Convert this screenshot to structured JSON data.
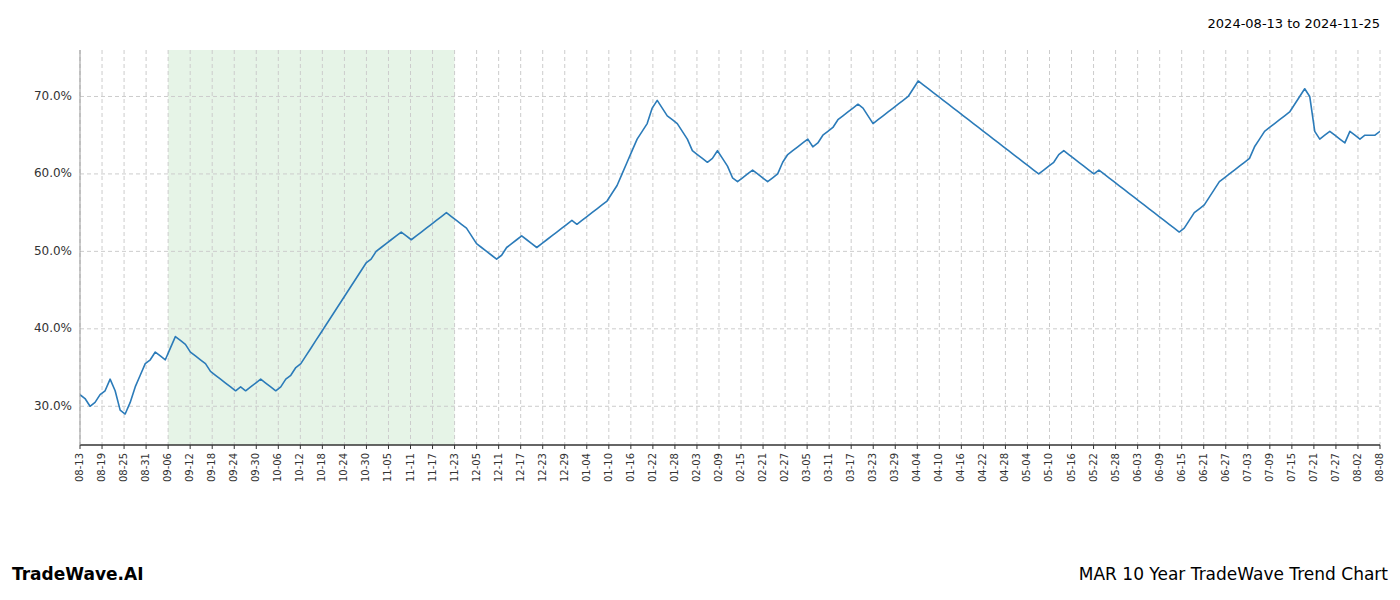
{
  "chart_data": {
    "type": "line",
    "title": "MAR 10 Year TradeWave Trend Chart",
    "subtitle": "2024-08-13 to 2024-11-25",
    "annotations": [
      "TradeWave.AI"
    ],
    "color": "#2B7BB9",
    "grid": true,
    "xlim": [
      0,
      259
    ],
    "xticks": [
      {
        "value": 0,
        "label": "08-13"
      },
      {
        "value": 4.389831,
        "label": "08-19"
      },
      {
        "value": 8.779661,
        "label": "08-25"
      },
      {
        "value": 13.169492,
        "label": "08-31"
      },
      {
        "value": 17.559322,
        "label": "09-06"
      },
      {
        "value": 21.949153,
        "label": "09-12"
      },
      {
        "value": 26.338983,
        "label": "09-18"
      },
      {
        "value": 30.728814,
        "label": "09-24"
      },
      {
        "value": 35.118644,
        "label": "09-30"
      },
      {
        "value": 39.508475,
        "label": "10-06"
      },
      {
        "value": 43.898305,
        "label": "10-12"
      },
      {
        "value": 48.288136,
        "label": "10-18"
      },
      {
        "value": 52.677966,
        "label": "10-24"
      },
      {
        "value": 57.067797,
        "label": "10-30"
      },
      {
        "value": 61.457627,
        "label": "11-05"
      },
      {
        "value": 65.847458,
        "label": "11-11"
      },
      {
        "value": 70.237288,
        "label": "11-17"
      },
      {
        "value": 74.627119,
        "label": "11-23"
      },
      {
        "value": 79.016949,
        "label": "12-05"
      },
      {
        "value": 83.40678,
        "label": "12-11"
      },
      {
        "value": 87.79661,
        "label": "12-17"
      },
      {
        "value": 92.186441,
        "label": "12-23"
      },
      {
        "value": 96.576271,
        "label": "12-29"
      },
      {
        "value": 100.966102,
        "label": "01-04"
      },
      {
        "value": 105.355932,
        "label": "01-10"
      },
      {
        "value": 109.745763,
        "label": "01-16"
      },
      {
        "value": 114.135593,
        "label": "01-22"
      },
      {
        "value": 118.525424,
        "label": "01-28"
      },
      {
        "value": 122.915254,
        "label": "02-03"
      },
      {
        "value": 127.305085,
        "label": "02-09"
      },
      {
        "value": 131.694915,
        "label": "02-15"
      },
      {
        "value": 136.084746,
        "label": "02-21"
      },
      {
        "value": 140.474576,
        "label": "02-27"
      },
      {
        "value": 144.864407,
        "label": "03-05"
      },
      {
        "value": 149.254237,
        "label": "03-11"
      },
      {
        "value": 153.644068,
        "label": "03-17"
      },
      {
        "value": 158.033898,
        "label": "03-23"
      },
      {
        "value": 162.423729,
        "label": "03-29"
      },
      {
        "value": 166.813559,
        "label": "04-04"
      },
      {
        "value": 171.20339,
        "label": "04-10"
      },
      {
        "value": 175.59322,
        "label": "04-16"
      },
      {
        "value": 179.983051,
        "label": "04-22"
      },
      {
        "value": 184.372881,
        "label": "04-28"
      },
      {
        "value": 188.762712,
        "label": "05-04"
      },
      {
        "value": 193.152542,
        "label": "05-10"
      },
      {
        "value": 197.542373,
        "label": "05-16"
      },
      {
        "value": 201.932203,
        "label": "05-22"
      },
      {
        "value": 206.322034,
        "label": "05-28"
      },
      {
        "value": 210.711864,
        "label": "06-03"
      },
      {
        "value": 215.101695,
        "label": "06-09"
      },
      {
        "value": 219.491525,
        "label": "06-15"
      },
      {
        "value": 223.881356,
        "label": "06-21"
      },
      {
        "value": 228.271186,
        "label": "06-27"
      },
      {
        "value": 232.661017,
        "label": "07-03"
      },
      {
        "value": 237.050847,
        "label": "07-09"
      },
      {
        "value": 241.440678,
        "label": "07-15"
      },
      {
        "value": 245.830508,
        "label": "07-21"
      },
      {
        "value": 250.220339,
        "label": "07-27"
      },
      {
        "value": 254.610169,
        "label": "08-02"
      },
      {
        "value": 259,
        "label": "08-08"
      }
    ],
    "ylim": [
      25.0,
      76.0
    ],
    "yticks": [
      {
        "value": 30.0,
        "label": "30.0%"
      },
      {
        "value": 40.0,
        "label": "40.0%"
      },
      {
        "value": 50.0,
        "label": "50.0%"
      },
      {
        "value": 60.0,
        "label": "60.0%"
      },
      {
        "value": 70.0,
        "label": "70.0%"
      }
    ],
    "shaded_span": {
      "x": [
        17.559322,
        74.627119
      ],
      "color": "#c8e6c9"
    },
    "values": [
      31.5,
      31.0,
      30.0,
      30.5,
      31.5,
      32.0,
      33.5,
      32.0,
      29.5,
      29.0,
      30.5,
      32.5,
      34.0,
      35.5,
      36.0,
      37.0,
      36.5,
      36.0,
      37.5,
      39.0,
      38.5,
      38.0,
      37.0,
      36.5,
      36.0,
      35.5,
      34.5,
      34.0,
      33.5,
      33.0,
      32.5,
      32.0,
      32.5,
      32.0,
      32.5,
      33.0,
      33.5,
      33.0,
      32.5,
      32.0,
      32.5,
      33.5,
      34.0,
      35.0,
      35.5,
      36.5,
      37.5,
      38.5,
      39.5,
      40.5,
      41.5,
      42.5,
      43.5,
      44.5,
      45.5,
      46.5,
      47.5,
      48.5,
      49.0,
      50.0,
      50.5,
      51.0,
      51.5,
      52.0,
      52.5,
      52.0,
      51.5,
      52.0,
      52.5,
      53.0,
      53.5,
      54.0,
      54.5,
      55.0,
      54.5,
      54.0,
      53.5,
      53.0,
      52.0,
      51.0,
      50.5,
      50.0,
      49.5,
      49.0,
      49.5,
      50.5,
      51.0,
      51.5,
      52.0,
      51.5,
      51.0,
      50.5,
      51.0,
      51.5,
      52.0,
      52.5,
      53.0,
      53.5,
      54.0,
      53.5,
      54.0,
      54.5,
      55.0,
      55.5,
      56.0,
      56.5,
      57.5,
      58.5,
      60.0,
      61.5,
      63.0,
      64.5,
      65.5,
      66.5,
      68.5,
      69.5,
      68.5,
      67.5,
      67.0,
      66.5,
      65.5,
      64.5,
      63.0,
      62.5,
      62.0,
      61.5,
      62.0,
      63.0,
      62.0,
      61.0,
      59.5,
      59.0,
      59.5,
      60.0,
      60.5,
      60.0,
      59.5,
      59.0,
      59.5,
      60.0,
      61.5,
      62.5,
      63.0,
      63.5,
      64.0,
      64.5,
      63.5,
      64.0,
      65.0,
      65.5,
      66.0,
      67.0,
      67.5,
      68.0,
      68.5,
      69.0,
      68.5,
      67.5,
      66.5,
      67.0,
      67.5,
      68.0,
      68.5,
      69.0,
      69.5,
      70.0,
      71.0,
      72.0,
      71.5,
      71.0,
      70.5,
      70.0,
      69.5,
      69.0,
      68.5,
      68.0,
      67.5,
      67.0,
      66.5,
      66.0,
      65.5,
      65.0,
      64.5,
      64.0,
      63.5,
      63.0,
      62.5,
      62.0,
      61.5,
      61.0,
      60.5,
      60.0,
      60.5,
      61.0,
      61.5,
      62.5,
      63.0,
      62.5,
      62.0,
      61.5,
      61.0,
      60.5,
      60.0,
      60.5,
      60.0,
      59.5,
      59.0,
      58.5,
      58.0,
      57.5,
      57.0,
      56.5,
      56.0,
      55.5,
      55.0,
      54.5,
      54.0,
      53.5,
      53.0,
      52.5,
      53.0,
      54.0,
      55.0,
      55.5,
      56.0,
      57.0,
      58.0,
      59.0,
      59.5,
      60.0,
      60.5,
      61.0,
      61.5,
      62.0,
      63.5,
      64.5,
      65.5,
      66.0,
      66.5,
      67.0,
      67.5,
      68.0,
      69.0,
      70.0,
      71.0,
      70.0,
      65.5,
      64.5,
      65.0,
      65.5,
      65.0,
      64.5,
      64.0,
      65.5,
      65.0,
      64.5,
      65.0,
      65.0,
      65.0,
      65.5
    ]
  }
}
